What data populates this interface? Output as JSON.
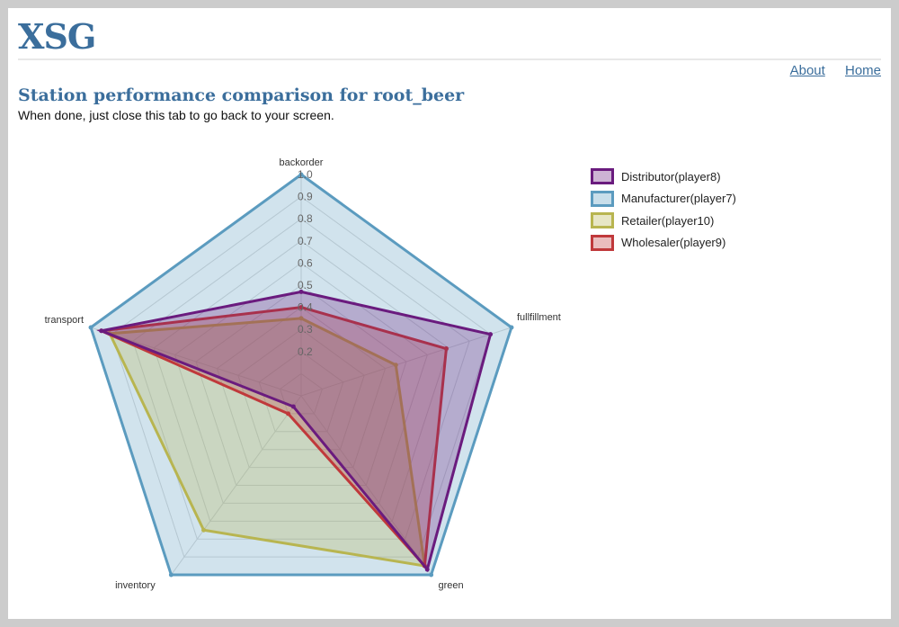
{
  "header": {
    "brand": "XSG"
  },
  "nav": {
    "items": [
      {
        "label": "About"
      },
      {
        "label": "Home"
      }
    ]
  },
  "page": {
    "title": "Station performance comparison for root_beer",
    "subtitle": "When done, just close this tab to go back to your screen."
  },
  "chart_data": {
    "type": "radar",
    "axes": [
      "backorder",
      "fullfillment",
      "green",
      "inventory",
      "transport"
    ],
    "ticks": [
      0.2,
      0.3,
      0.4,
      0.5,
      0.6,
      0.7,
      0.8,
      0.9,
      1.0
    ],
    "tick_labels": [
      "0.2",
      "0.3",
      "0.4",
      "0.5",
      "0.6",
      "0.7",
      "0.8",
      "0.9",
      "1.0"
    ],
    "range": [
      0,
      1
    ],
    "grid": true,
    "legend_position": "right",
    "series": [
      {
        "name": "Manufacturer(player7)",
        "color": "#5b9bbf",
        "values": [
          1.0,
          1.0,
          1.0,
          1.0,
          1.0
        ]
      },
      {
        "name": "Retailer(player10)",
        "color": "#b8b550",
        "values": [
          0.35,
          0.45,
          0.95,
          0.75,
          0.91
        ]
      },
      {
        "name": "Wholesaler(player9)",
        "color": "#c0393b",
        "values": [
          0.4,
          0.69,
          0.95,
          0.1,
          0.95
        ]
      },
      {
        "name": "Distributor(player8)",
        "color": "#6a1b7e",
        "values": [
          0.47,
          0.9,
          0.97,
          0.06,
          0.95
        ]
      }
    ],
    "legend_order": [
      "Distributor(player8)",
      "Manufacturer(player7)",
      "Retailer(player10)",
      "Wholesaler(player9)"
    ]
  }
}
